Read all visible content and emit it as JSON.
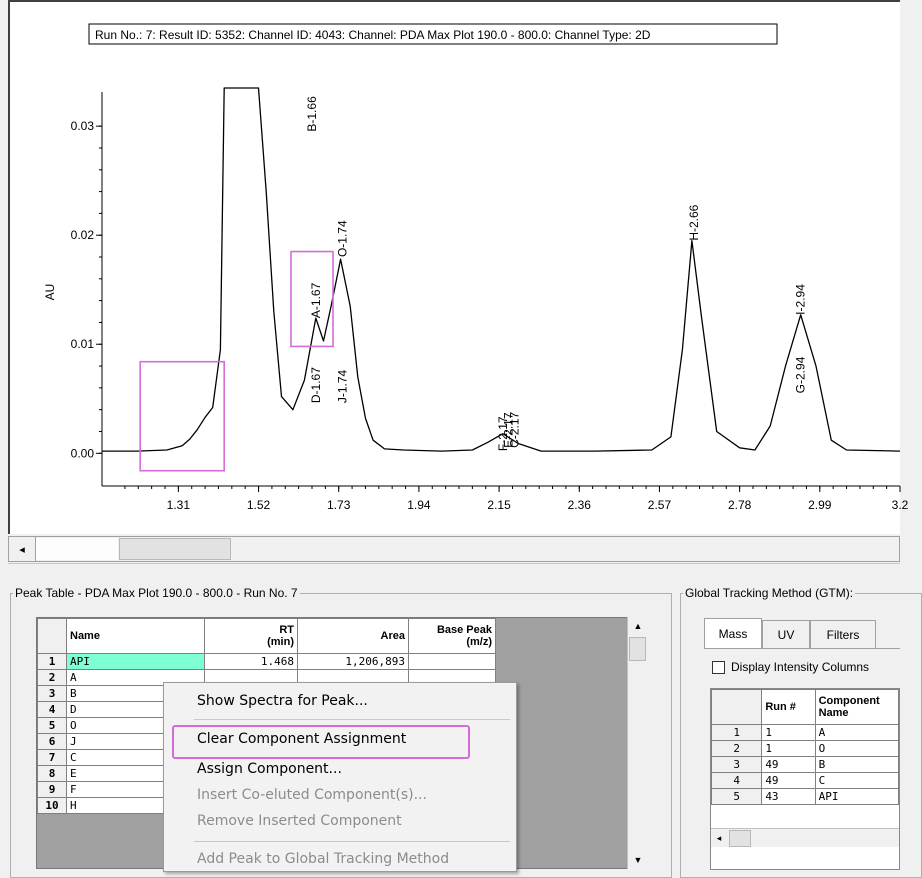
{
  "chart_data": {
    "type": "line",
    "title": "Run No.: 7: Result ID: 5352: Channel ID: 4043: Channel: PDA Max Plot 190.0 - 800.0: Channel Type: 2D",
    "ylabel": "AU",
    "xlabel": "",
    "xlim": [
      1.11,
      3.2
    ],
    "ylim": [
      -0.003,
      0.0335
    ],
    "x_ticks": [
      "1.31",
      "1.52",
      "1.73",
      "1.94",
      "2.15",
      "2.36",
      "2.57",
      "2.78",
      "2.99",
      "3.2"
    ],
    "y_ticks": [
      "0.00",
      "0.01",
      "0.02",
      "0.03"
    ],
    "series": [
      {
        "x": [
          1.11,
          1.2,
          1.28,
          1.32,
          1.34,
          1.36,
          1.38,
          1.4,
          1.42,
          1.43,
          1.45,
          1.47,
          1.48,
          1.5,
          1.52,
          1.54,
          1.56,
          1.58,
          1.61,
          1.64,
          1.67,
          1.69,
          1.71,
          1.735,
          1.76,
          1.78,
          1.8,
          1.82,
          1.85,
          1.9,
          2.0,
          2.08,
          2.12,
          2.16,
          2.2,
          2.26,
          2.4,
          2.55,
          2.6,
          2.63,
          2.655,
          2.68,
          2.72,
          2.78,
          2.82,
          2.86,
          2.9,
          2.94,
          2.98,
          3.02,
          3.06,
          3.2
        ],
        "y": [
          0.0002,
          0.0002,
          0.0003,
          0.0007,
          0.0013,
          0.0022,
          0.0033,
          0.0042,
          0.0095,
          0.0336,
          0.0336,
          0.0336,
          0.0336,
          0.0336,
          0.0336,
          0.024,
          0.013,
          0.0052,
          0.004,
          0.0067,
          0.0124,
          0.0103,
          0.0135,
          0.0178,
          0.0135,
          0.007,
          0.0032,
          0.0012,
          0.0004,
          0.0003,
          0.0002,
          0.0003,
          0.001,
          0.0018,
          0.0009,
          0.0002,
          0.0002,
          0.0003,
          0.0015,
          0.0095,
          0.0195,
          0.0125,
          0.002,
          0.0005,
          0.0003,
          0.0025,
          0.008,
          0.0127,
          0.008,
          0.0012,
          0.0003,
          0.0002
        ]
      }
    ],
    "annotations": [
      {
        "label": "B-1.66",
        "x": 1.66,
        "y": 0.0295
      },
      {
        "label": "A-1.67",
        "x": 1.67,
        "y": 0.0124
      },
      {
        "label": "D-1.67",
        "x": 1.67,
        "y": 0.0046
      },
      {
        "label": "O-1.74",
        "x": 1.74,
        "y": 0.018
      },
      {
        "label": "J-1.74",
        "x": 1.74,
        "y": 0.0046
      },
      {
        "label": "F-2.17",
        "x": 2.16,
        "y": 0.0002
      },
      {
        "label": "E-2.17",
        "x": 2.175,
        "y": 0.0005
      },
      {
        "label": "C-2.17",
        "x": 2.19,
        "y": 0.0005
      },
      {
        "label": "H-2.66",
        "x": 2.66,
        "y": 0.0195
      },
      {
        "label": "I-2.94",
        "x": 2.94,
        "y": 0.0127
      },
      {
        "label": "G-2.94",
        "x": 2.94,
        "y": 0.0055
      }
    ],
    "highlight_regions": [
      {
        "x": [
          1.21,
          1.43
        ],
        "y": [
          -0.0016,
          0.0084
        ]
      },
      {
        "x": [
          1.605,
          1.715
        ],
        "y": [
          0.0098,
          0.0185
        ]
      }
    ],
    "grid": false
  },
  "scrollbar": {
    "left_arrow": "◂"
  },
  "peak_table": {
    "legend": "Peak Table - PDA Max Plot 190.0 - 800.0 - Run No. 7",
    "headers": {
      "name": "Name",
      "rt": "RT\n(min)",
      "area": "Area",
      "base_peak": "Base Peak\n(m/z)"
    },
    "rows": [
      {
        "n": "1",
        "name": "API",
        "rt": "1.468",
        "area": "1,206,893",
        "base": ""
      },
      {
        "n": "2",
        "name": "A",
        "rt": "",
        "area": "",
        "base": ""
      },
      {
        "n": "3",
        "name": "B",
        "rt": "",
        "area": "",
        "base": ""
      },
      {
        "n": "4",
        "name": "D",
        "rt": "",
        "area": "",
        "base": ""
      },
      {
        "n": "5",
        "name": "O",
        "rt": "",
        "area": "",
        "base": ""
      },
      {
        "n": "6",
        "name": "J",
        "rt": "",
        "area": "",
        "base": ""
      },
      {
        "n": "7",
        "name": "C",
        "rt": "",
        "area": "",
        "base": ""
      },
      {
        "n": "8",
        "name": "E",
        "rt": "",
        "area": "",
        "base": ""
      },
      {
        "n": "9",
        "name": "F",
        "rt": "",
        "area": "",
        "base": ""
      },
      {
        "n": "10",
        "name": "H",
        "rt": "",
        "area": "",
        "base": ""
      }
    ]
  },
  "context_menu": {
    "items": [
      {
        "label": "Show Spectra for Peak...",
        "enabled": true
      },
      {
        "label": "Clear Component Assignment",
        "enabled": true
      },
      {
        "label": "Assign Component...",
        "enabled": true
      },
      {
        "label": "Insert Co-eluted Component(s)...",
        "enabled": false
      },
      {
        "label": "Remove Inserted Component",
        "enabled": false
      },
      {
        "label": "Add Peak to Global Tracking Method",
        "enabled": false
      }
    ]
  },
  "gtm": {
    "legend": "Global Tracking Method (GTM):",
    "tabs": [
      "Mass",
      "UV",
      "Filters"
    ],
    "checkbox_label": "Display Intensity Columns",
    "headers": {
      "run": "Run #",
      "component": "Component\nName"
    },
    "rows": [
      {
        "n": "1",
        "run": "1",
        "component": "A"
      },
      {
        "n": "2",
        "run": "1",
        "component": "O"
      },
      {
        "n": "3",
        "run": "49",
        "component": "B"
      },
      {
        "n": "4",
        "run": "49",
        "component": "C"
      },
      {
        "n": "5",
        "run": "43",
        "component": "API"
      }
    ]
  },
  "colors": {
    "highlight": "#d66cdc",
    "selected_cell": "#7fffd4",
    "trace": "#000000"
  }
}
